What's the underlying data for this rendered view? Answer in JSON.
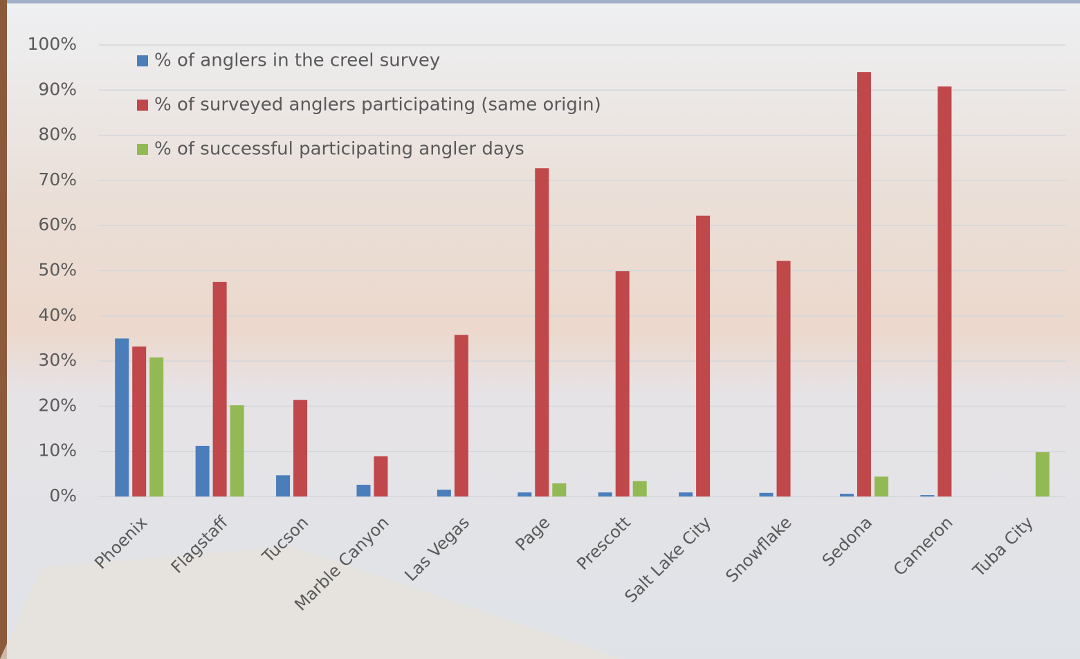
{
  "chart_data": {
    "type": "bar",
    "categories": [
      "Phoenix",
      "Flagstaff",
      "Tucson",
      "Marble Canyon",
      "Las Vegas",
      "Page",
      "Prescott",
      "Salt Lake City",
      "Snowflake",
      "Sedona",
      "Cameron",
      "Tuba City"
    ],
    "series": [
      {
        "name": "% of anglers in the creel survey",
        "color": "#4a7ebb",
        "values": [
          35,
          11.2,
          4.7,
          2.6,
          1.5,
          0.9,
          0.9,
          0.9,
          0.8,
          0.6,
          0.3,
          0
        ]
      },
      {
        "name": "% of surveyed anglers participating (same origin)",
        "color": "#c0474a",
        "values": [
          33.2,
          47.5,
          21.4,
          8.9,
          35.8,
          72.7,
          49.9,
          62.2,
          52.2,
          94,
          90.8,
          0
        ]
      },
      {
        "name": "% of successful participating angler days",
        "color": "#93b954",
        "values": [
          30.8,
          20.2,
          0,
          0,
          0,
          2.9,
          3.4,
          0,
          0,
          4.4,
          0,
          9.8
        ]
      }
    ],
    "ylim": [
      0,
      100
    ],
    "yticks": [
      {
        "value": 0,
        "label": "0%"
      },
      {
        "value": 10,
        "label": "10%"
      },
      {
        "value": 20,
        "label": "20%"
      },
      {
        "value": 30,
        "label": "30%"
      },
      {
        "value": 40,
        "label": "40%"
      },
      {
        "value": 50,
        "label": "50%"
      },
      {
        "value": 60,
        "label": "60%"
      },
      {
        "value": 70,
        "label": "70%"
      },
      {
        "value": 80,
        "label": "80%"
      },
      {
        "value": 90,
        "label": "90%"
      },
      {
        "value": 100,
        "label": "100%"
      }
    ],
    "grid": true
  }
}
